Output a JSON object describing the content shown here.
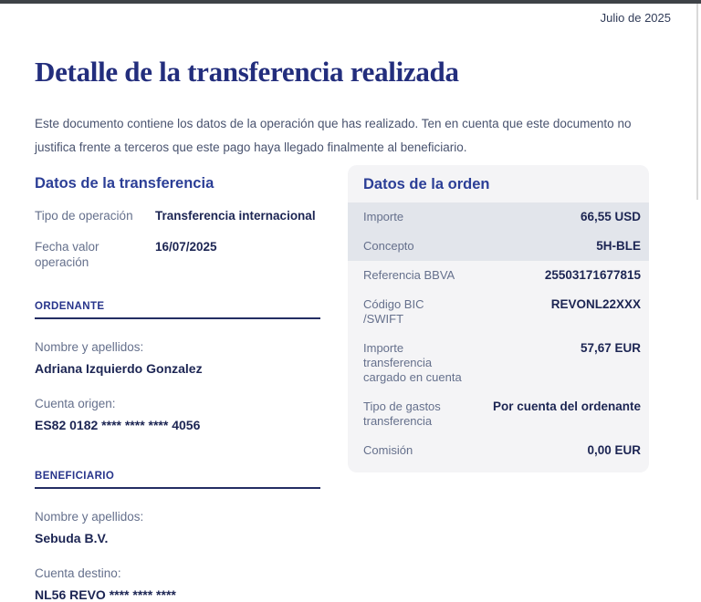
{
  "page": {
    "date_label": "Julio de 2025",
    "title": "Detalle de la transferencia realizada",
    "intro": "Este documento contiene los datos de la operación que has realizado. Ten en cuenta que este documento no justifica frente a terceros que este pago haya llegado finalmente al beneficiario."
  },
  "transfer": {
    "heading": "Datos de la transferencia",
    "rows": [
      {
        "label": "Tipo de operación",
        "value": "Transferencia internacional"
      },
      {
        "label": "Fecha valor operación",
        "value": "16/07/2025"
      }
    ],
    "sections": [
      {
        "heading": "ORDENANTE",
        "fields": [
          {
            "label": "Nombre y apellidos:",
            "value": "Adriana Izquierdo Gonzalez"
          },
          {
            "label": "Cuenta origen:",
            "value": "ES82 0182 **** **** **** 4056"
          }
        ]
      },
      {
        "heading": "BENEFICIARIO",
        "fields": [
          {
            "label": "Nombre y apellidos:",
            "value": "Sebuda B.V."
          },
          {
            "label": "Cuenta destino:",
            "value": "NL56 REVO **** **** ****"
          }
        ]
      }
    ]
  },
  "order": {
    "heading": "Datos de la orden",
    "rows": [
      {
        "label": "Importe",
        "value": "66,55 USD"
      },
      {
        "label": "Concepto",
        "value": "5H-BLE"
      },
      {
        "label": "Referencia BBVA",
        "value": "25503171677815"
      },
      {
        "label": "Código BIC /SWIFT",
        "value": "REVONL22XXX"
      },
      {
        "label": "Importe transferencia cargado en cuenta",
        "value": "57,67 EUR"
      },
      {
        "label": "Tipo de gastos transferencia",
        "value": "Por cuenta del ordenante"
      },
      {
        "label": "Comisión",
        "value": "0,00 EUR"
      }
    ]
  },
  "colors": {
    "title_navy": "#232e7d",
    "heading_blue": "#2b3e96",
    "value_navy": "#1c2553",
    "label_gray_blue": "#65708c",
    "card_background": "#f4f4f6",
    "row_highlight": "#e2e5eb",
    "top_bar": "#3e4247"
  }
}
